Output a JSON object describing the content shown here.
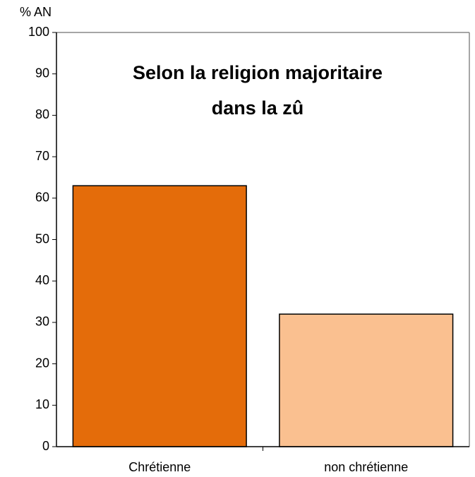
{
  "chart_data": {
    "type": "bar",
    "title": [
      "Selon la religion majoritaire",
      "dans la zû"
    ],
    "y_label": "% AN",
    "categories": [
      "Chrétienne",
      "non chrétienne"
    ],
    "values": [
      63,
      32
    ],
    "colors": [
      "#e46c0a",
      "#fac090"
    ],
    "ylim": [
      0,
      100
    ],
    "yticks": [
      0,
      10,
      20,
      30,
      40,
      50,
      60,
      70,
      80,
      90,
      100
    ],
    "grid": false
  }
}
